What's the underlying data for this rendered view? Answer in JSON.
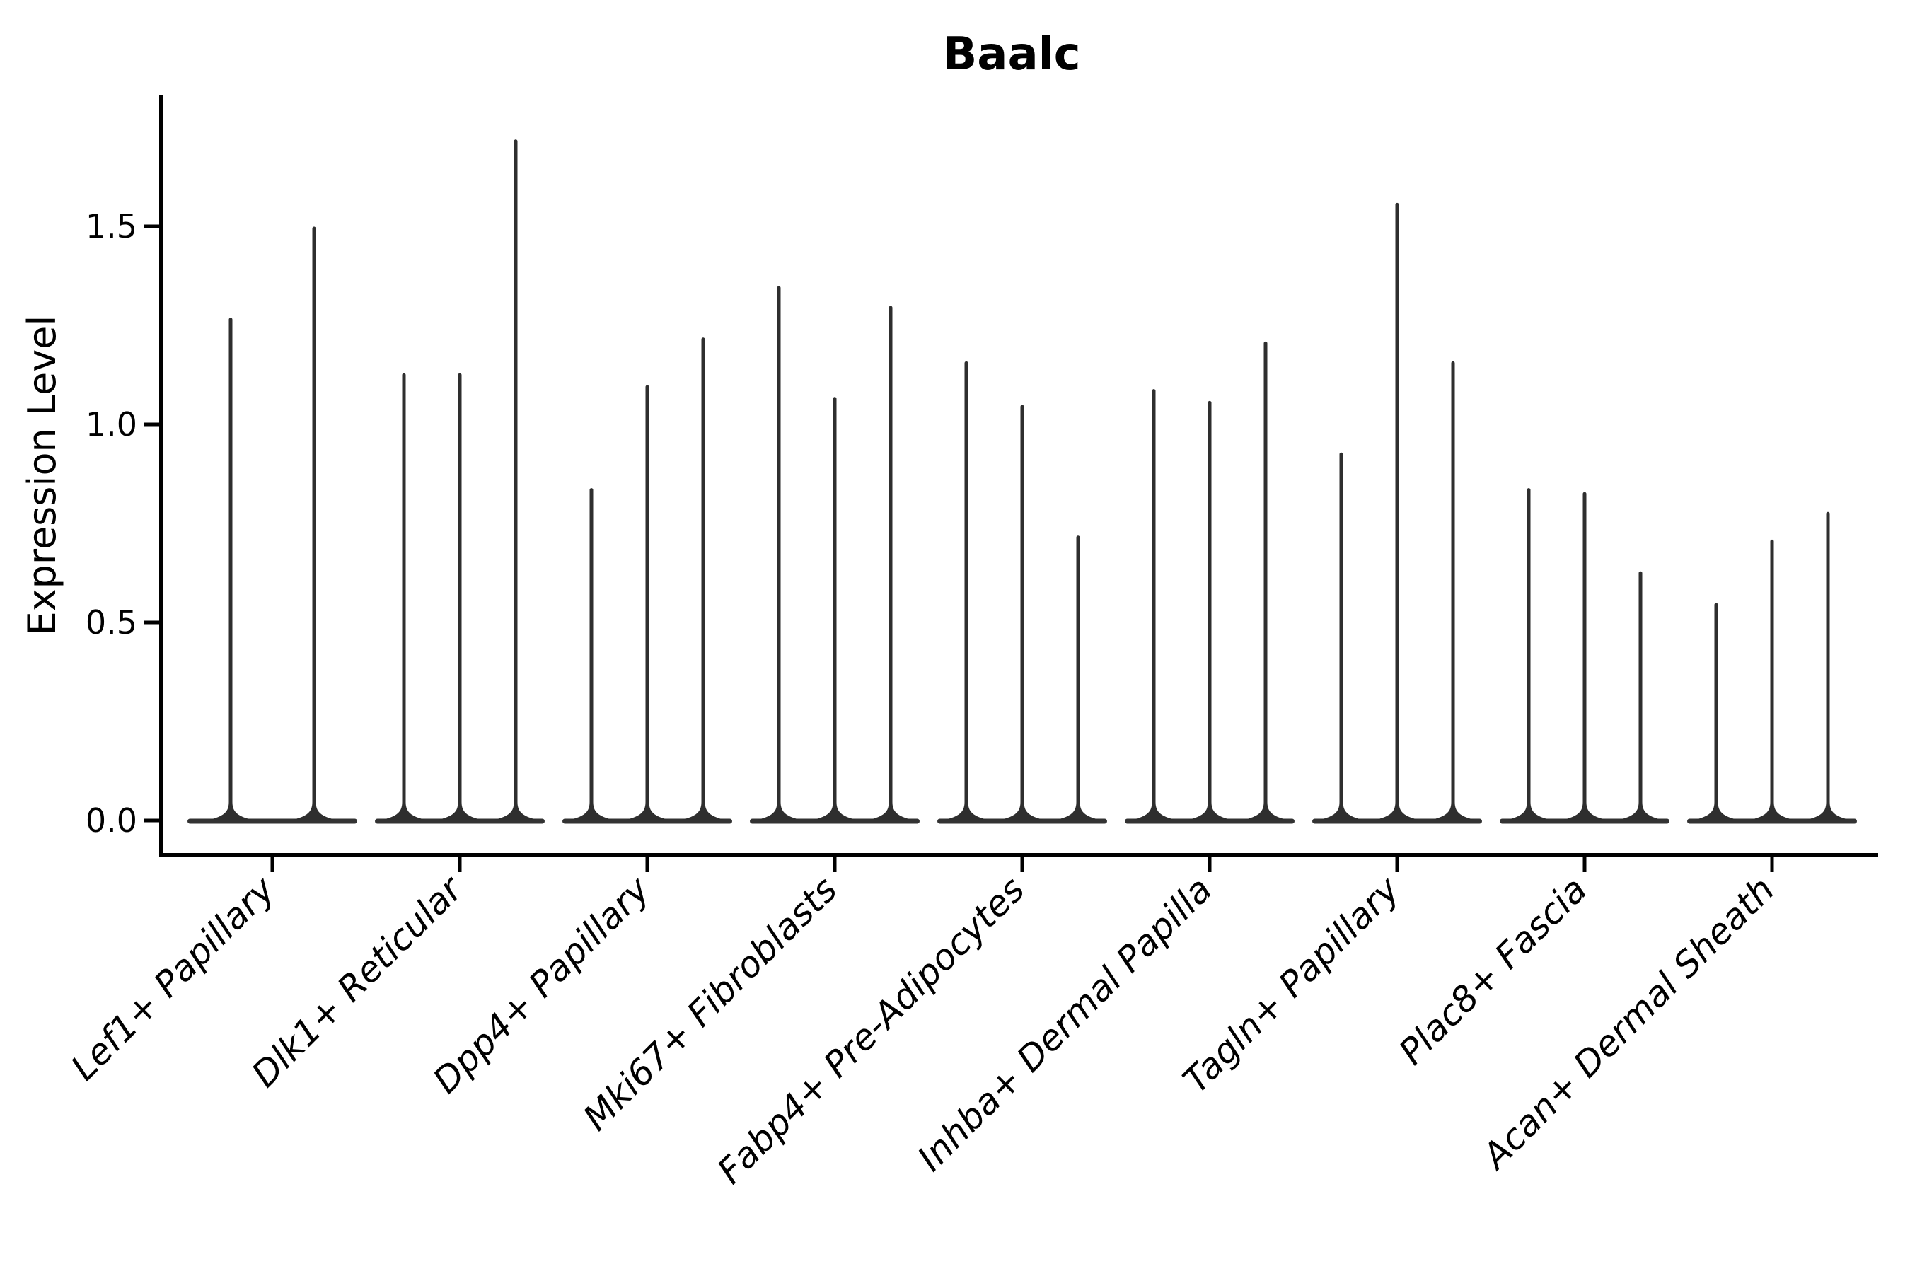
{
  "title": "Baalc",
  "ylabel": "Expression Level",
  "colors": {
    "background": "#ffffff",
    "axis": "#000000",
    "violin": "#2e2e2e",
    "baseline_strip": "#333333",
    "text": "#000000"
  },
  "chart_data": {
    "type": "violin",
    "title": "Baalc",
    "xlabel": "",
    "ylabel": "Expression Level",
    "ylim": [
      0,
      1.83
    ],
    "yticks": [
      0.0,
      0.5,
      1.0,
      1.5
    ],
    "ytick_labels": [
      "0.0",
      "0.5",
      "1.0",
      "1.5"
    ],
    "grid": "off",
    "legend": "none",
    "style": "thin black spike violins rising from flat baseline at 0, open left+bottom spines, x labels rotated 45deg italic",
    "categories": [
      "Lef1+ Papillary",
      "Dlk1+ Reticular",
      "Dpp4+ Papillary",
      "Mki67+ Fibroblasts",
      "Fabp4+ Pre-Adipocytes",
      "Inhba+ Dermal Papilla",
      "Tagln+ Papillary",
      "Plac8+ Fascia",
      "Acan+ Dermal Sheath"
    ],
    "series": [
      {
        "name": "Lef1+ Papillary",
        "violin_max_values": [
          1.27,
          1.5
        ]
      },
      {
        "name": "Dlk1+ Reticular",
        "violin_max_values": [
          1.13,
          1.13,
          1.72
        ]
      },
      {
        "name": "Dpp4+ Papillary",
        "violin_max_values": [
          0.84,
          1.1,
          1.22
        ]
      },
      {
        "name": "Mki67+ Fibroblasts",
        "violin_max_values": [
          1.35,
          1.07,
          1.3
        ]
      },
      {
        "name": "Fabp4+ Pre-Adipocytes",
        "violin_max_values": [
          1.16,
          1.05,
          0.72
        ]
      },
      {
        "name": "Inhba+ Dermal Papilla",
        "violin_max_values": [
          1.09,
          1.06,
          1.21
        ]
      },
      {
        "name": "Tagln+ Papillary",
        "violin_max_values": [
          0.93,
          1.56,
          1.16
        ]
      },
      {
        "name": "Plac8+ Fascia",
        "violin_max_values": [
          0.84,
          0.83,
          0.63
        ]
      },
      {
        "name": "Acan+ Dermal Sheath",
        "violin_max_values": [
          0.55,
          0.71,
          0.78
        ]
      }
    ]
  }
}
